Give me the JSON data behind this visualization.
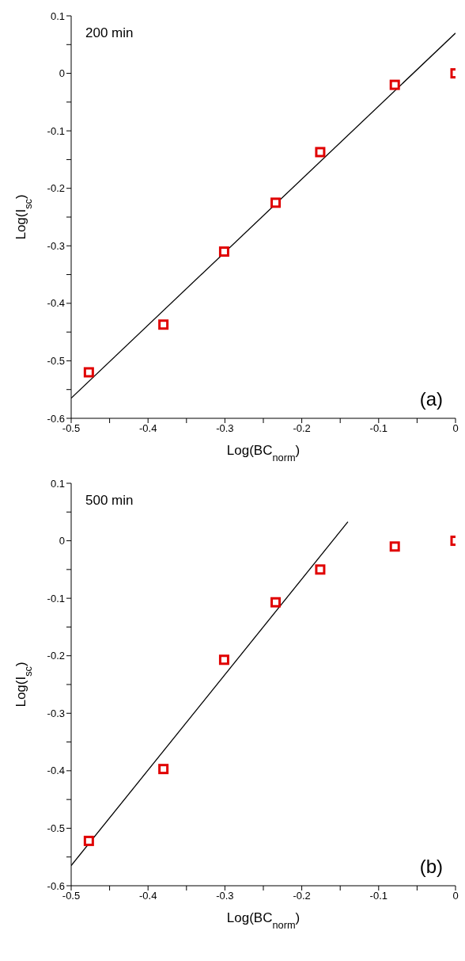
{
  "chart_data": [
    {
      "type": "scatter",
      "xlabel": "Log(BC$_{norm}$)",
      "ylabel": "Log(I$_{sc}$)",
      "annotations": [
        "200 min",
        "(a)"
      ],
      "xlim": [
        -0.5,
        0
      ],
      "ylim": [
        -0.6,
        0.1
      ],
      "xticks": [
        -0.5,
        {
          "value": -0.45,
          "label": null
        },
        -0.4,
        {
          "value": -0.35,
          "label": null
        },
        -0.3,
        {
          "value": -0.25,
          "label": null
        },
        -0.2,
        {
          "value": -0.15,
          "label": null
        },
        -0.1,
        {
          "value": -0.05,
          "label": null
        },
        0
      ],
      "yticks": [
        -0.6,
        {
          "value": -0.55,
          "label": null
        },
        -0.5,
        {
          "value": -0.45,
          "label": null
        },
        -0.4,
        {
          "value": -0.35,
          "label": null
        },
        -0.3,
        {
          "value": -0.25,
          "label": null
        },
        -0.2,
        {
          "value": -0.15,
          "label": null
        },
        -0.1,
        {
          "value": -0.05,
          "label": null
        },
        0,
        {
          "value": 0.05,
          "label": null
        },
        0.1
      ],
      "grid": false,
      "legend": false,
      "series": [
        {
          "color": "#e00000",
          "marker": "square",
          "x": [
            -0.477,
            -0.38,
            -0.301,
            -0.234,
            -0.176,
            -0.079,
            0
          ],
          "values": [
            -0.52,
            -0.437,
            -0.31,
            -0.225,
            -0.137,
            -0.02,
            0
          ]
        },
        {
          "type": "line",
          "color": "#000000",
          "marker": "none",
          "line_style": "solid",
          "x": [
            -0.5,
            0
          ],
          "values": [
            -0.565,
            0.07
          ]
        }
      ]
    },
    {
      "type": "scatter",
      "xlabel": "Log(BC$_{norm}$)",
      "ylabel": "Log(I$_{sc}$)",
      "annotations": [
        "500 min",
        "(b)"
      ],
      "xlim": [
        -0.5,
        0
      ],
      "ylim": [
        -0.6,
        0.1
      ],
      "xticks": [
        -0.5,
        {
          "value": -0.45,
          "label": null
        },
        -0.4,
        {
          "value": -0.35,
          "label": null
        },
        -0.3,
        {
          "value": -0.25,
          "label": null
        },
        -0.2,
        {
          "value": -0.15,
          "label": null
        },
        -0.1,
        {
          "value": -0.05,
          "label": null
        },
        0
      ],
      "yticks": [
        -0.6,
        {
          "value": -0.55,
          "label": null
        },
        -0.5,
        {
          "value": -0.45,
          "label": null
        },
        -0.4,
        {
          "value": -0.35,
          "label": null
        },
        -0.3,
        {
          "value": -0.25,
          "label": null
        },
        -0.2,
        {
          "value": -0.15,
          "label": null
        },
        -0.1,
        {
          "value": -0.05,
          "label": null
        },
        0,
        {
          "value": 0.05,
          "label": null
        },
        0.1
      ],
      "grid": false,
      "legend": false,
      "series": [
        {
          "color": "#e00000",
          "marker": "square",
          "x": [
            -0.477,
            -0.38,
            -0.301,
            -0.234,
            -0.176,
            -0.079,
            0
          ],
          "values": [
            -0.522,
            -0.397,
            -0.207,
            -0.107,
            -0.05,
            -0.01,
            0
          ]
        },
        {
          "type": "line",
          "color": "#000000",
          "marker": "none",
          "line_style": "solid",
          "x": [
            -0.5,
            -0.14
          ],
          "values": [
            -0.565,
            0.033
          ]
        }
      ]
    }
  ]
}
